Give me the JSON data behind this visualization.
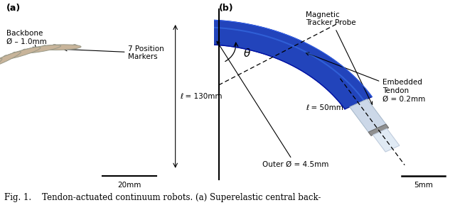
{
  "figure_label_a": "(a)",
  "figure_label_b": "(b)",
  "caption": "Fig. 1.    Tendon-actuated continuum robots. (a) Superelastic central back-",
  "caption_fontsize": 8.5,
  "label_fontsize": 9,
  "bg_color": "#ffffff",
  "figsize": [
    6.4,
    2.96
  ],
  "dpi": 100,
  "disk_color": "#c8b49a",
  "disk_edge_color": "#999988",
  "backbone_color": "#b0a090",
  "tube_fill": "#2244bb",
  "tube_edge": "#112299",
  "tube_highlight": "#4466dd",
  "probe_body_color": "#d0dde8",
  "probe_tip_color": "#e8eef4",
  "probe_ring_color": "#888899"
}
